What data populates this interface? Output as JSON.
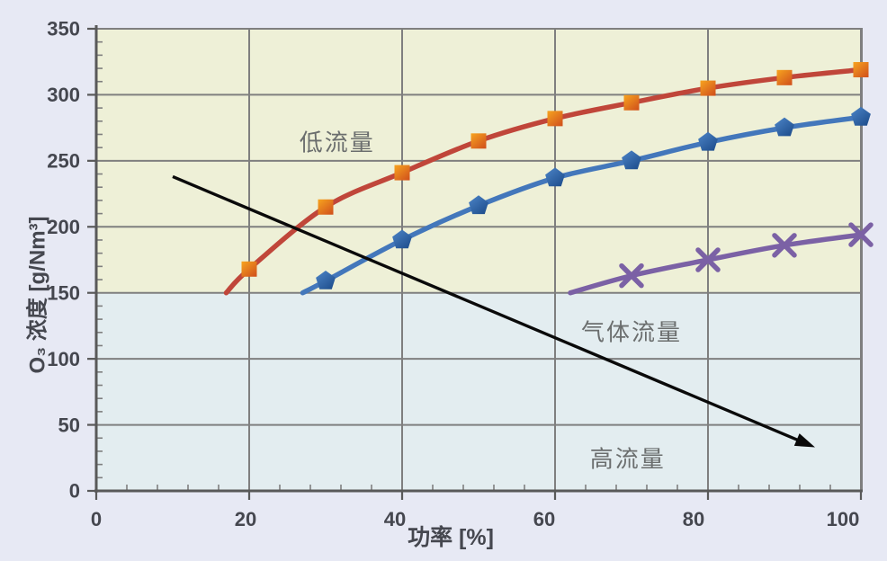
{
  "chart_data": {
    "type": "line",
    "title": "",
    "xlabel": "功率 [%]",
    "ylabel": "O₃ 浓度 [g/Nm³]",
    "xlim": [
      0,
      100
    ],
    "ylim": [
      0,
      350
    ],
    "x_major_ticks": [
      0,
      20,
      40,
      60,
      80,
      100
    ],
    "x_minor_step": 4,
    "y_major_ticks": [
      0,
      50,
      100,
      150,
      200,
      250,
      300,
      350
    ],
    "y_minor_step": 10,
    "grid": true,
    "legend": "none",
    "background_bands": [
      {
        "id": "upper-band",
        "from_y": 150,
        "to_y": 350,
        "color": "#eef0d7"
      },
      {
        "id": "lower-band",
        "from_y": 0,
        "to_y": 150,
        "color": "#e3edf0"
      }
    ],
    "series": [
      {
        "id": "red-squares",
        "marker": "square",
        "line_color": "#c0463a",
        "marker_color_light": "#f7a41f",
        "marker_color_dark": "#d2541c",
        "x": [
          17,
          20,
          30,
          40,
          50,
          60,
          70,
          80,
          90,
          100
        ],
        "y": [
          150,
          168,
          215,
          241,
          265,
          282,
          294,
          305,
          313,
          319
        ],
        "marker_start_index": 1
      },
      {
        "id": "blue-pentagons",
        "marker": "pentagon",
        "line_color": "#4377bb",
        "marker_color_light": "#4d85c8",
        "marker_color_dark": "#1e4e8d",
        "x": [
          27,
          30,
          40,
          50,
          60,
          70,
          80,
          90,
          100
        ],
        "y": [
          150,
          159,
          190,
          216,
          237,
          250,
          264,
          275,
          283
        ],
        "marker_start_index": 1
      },
      {
        "id": "purple-crosses",
        "marker": "x",
        "line_color": "#7b61a5",
        "x": [
          62,
          70,
          80,
          90,
          100
        ],
        "y": [
          150,
          163,
          175,
          186,
          194
        ],
        "marker_start_index": 1
      }
    ],
    "annotations": [
      {
        "id": "low-flow",
        "text": "低流量",
        "x": 31.5,
        "y": 265
      },
      {
        "id": "gas-flow",
        "text": "气体流量",
        "x": 70,
        "y": 121
      },
      {
        "id": "high-flow",
        "text": "高流量",
        "x": 69.5,
        "y": 25
      }
    ],
    "arrow": {
      "from_x": 10,
      "from_y": 238,
      "to_x": 94,
      "to_y": 33,
      "color": "#0a0a0a"
    }
  },
  "colors": {
    "page_bg": "#e7e9f4",
    "plot_area_upper": "#eef0d7",
    "plot_area_lower": "#e3edf0",
    "gridline": "#7f7f7f",
    "axis_line": "#595959",
    "tick_label": "#45474f",
    "axis_title": "#45474f",
    "annotation_text": "#6b6e6e",
    "arrow": "#0a0a0a"
  }
}
